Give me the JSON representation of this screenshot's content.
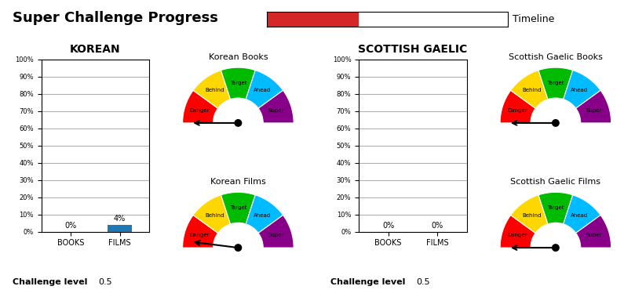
{
  "title": "Super Challenge Progress",
  "challenge_label": "Challenge level",
  "challenge_level": 0.5,
  "chart_data": [
    {
      "type": "progress",
      "title": "Timeline",
      "value": 0.38,
      "xlim": [
        0,
        1
      ],
      "tick_labels": false
    },
    {
      "type": "bar",
      "title": "KOREAN",
      "categories": [
        "BOOKS",
        "FILMS"
      ],
      "values": [
        0,
        4
      ],
      "value_labels": [
        "0%",
        "4%"
      ],
      "data_labels": true,
      "grid": true,
      "ylim": [
        0,
        100
      ],
      "yticks": [
        {
          "value": 0,
          "label": "0%"
        },
        {
          "value": 10,
          "label": "10%"
        },
        {
          "value": 20,
          "label": "20%"
        },
        {
          "value": 30,
          "label": "30%"
        },
        {
          "value": 40,
          "label": "40%"
        },
        {
          "value": 50,
          "label": "50%"
        },
        {
          "value": 60,
          "label": "60%"
        },
        {
          "value": 70,
          "label": "70%"
        },
        {
          "value": 80,
          "label": "80%"
        },
        {
          "value": 90,
          "label": "90%"
        },
        {
          "value": 100,
          "label": "100%"
        }
      ]
    },
    {
      "type": "gauge",
      "title": "Korean Books",
      "value": 0,
      "range": [
        0,
        100
      ],
      "segments": [
        {
          "label": "Danger",
          "color": "#ff0000"
        },
        {
          "label": "Behind",
          "color": "#ffd700"
        },
        {
          "label": "Target",
          "color": "#00bb00"
        },
        {
          "label": "Ahead",
          "color": "#00bbff"
        },
        {
          "label": "Super",
          "color": "#880088"
        }
      ]
    },
    {
      "type": "gauge",
      "title": "Korean Films",
      "value": 4,
      "range": [
        0,
        100
      ],
      "segments": [
        {
          "label": "Danger",
          "color": "#ff0000"
        },
        {
          "label": "Behind",
          "color": "#ffd700"
        },
        {
          "label": "Target",
          "color": "#00bb00"
        },
        {
          "label": "Ahead",
          "color": "#00bbff"
        },
        {
          "label": "Super",
          "color": "#880088"
        }
      ]
    },
    {
      "type": "bar",
      "title": "SCOTTISH GAELIC",
      "categories": [
        "BOOKS",
        "FILMS"
      ],
      "values": [
        0,
        0
      ],
      "value_labels": [
        "0%",
        "0%"
      ],
      "data_labels": true,
      "grid": true,
      "ylim": [
        0,
        100
      ],
      "yticks": [
        {
          "value": 0,
          "label": "0%"
        },
        {
          "value": 10,
          "label": "10%"
        },
        {
          "value": 20,
          "label": "20%"
        },
        {
          "value": 30,
          "label": "30%"
        },
        {
          "value": 40,
          "label": "40%"
        },
        {
          "value": 50,
          "label": "50%"
        },
        {
          "value": 60,
          "label": "60%"
        },
        {
          "value": 70,
          "label": "70%"
        },
        {
          "value": 80,
          "label": "80%"
        },
        {
          "value": 90,
          "label": "90%"
        },
        {
          "value": 100,
          "label": "100%"
        }
      ]
    },
    {
      "type": "gauge",
      "title": "Scottish Gaelic Books",
      "value": 0,
      "range": [
        0,
        100
      ],
      "segments": [
        {
          "label": "Danger",
          "color": "#ff0000"
        },
        {
          "label": "Behind",
          "color": "#ffd700"
        },
        {
          "label": "Target",
          "color": "#00bb00"
        },
        {
          "label": "Ahead",
          "color": "#00bbff"
        },
        {
          "label": "Super",
          "color": "#880088"
        }
      ]
    },
    {
      "type": "gauge",
      "title": "Scottish Gaelic Films",
      "value": 0,
      "range": [
        0,
        100
      ],
      "segments": [
        {
          "label": "Danger",
          "color": "#ff0000"
        },
        {
          "label": "Behind",
          "color": "#ffd700"
        },
        {
          "label": "Target",
          "color": "#00bb00"
        },
        {
          "label": "Ahead",
          "color": "#00bbff"
        },
        {
          "label": "Super",
          "color": "#880088"
        }
      ]
    }
  ]
}
